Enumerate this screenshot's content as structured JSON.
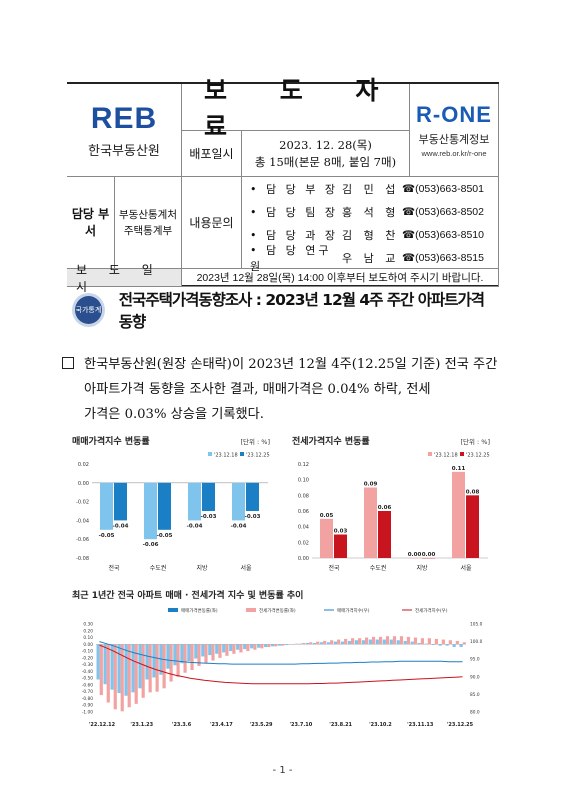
{
  "header": {
    "org_logo_text": "REB",
    "org_name": "한국부동산원",
    "doc_title": "보 도 자 료",
    "distribution_label": "배포일시",
    "distribution_date": "2023. 12. 28(목)",
    "distribution_pages": "총 15매(본문 8매, 붙임 7매)",
    "rone_logo_text": "R-ONE",
    "rone_name": "부동산통계정보",
    "rone_url": "www.reb.or.kr/r-one",
    "dept_label": "담당 부서",
    "dept_line1": "부동산통계처",
    "dept_line2": "주택통계부",
    "inquiry_label": "내용문의",
    "contacts": [
      {
        "role": "• 담 당 부 장",
        "name": "김 민 섭",
        "phone": "☎(053)663-8501"
      },
      {
        "role": "• 담 당 팀 장",
        "name": "홍 석 형",
        "phone": "☎(053)663-8502"
      },
      {
        "role": "• 담 당 과 장",
        "name": "김 형 찬",
        "phone": "☎(053)663-8510"
      },
      {
        "role": "• 담 당 연구원",
        "name": "우 남 교",
        "phone": "☎(053)663-8515"
      }
    ],
    "release_label": "보 도 일 시",
    "release_text": "2023년 12월 28일(목) 14:00 이후부터 보도하여 주시기 바랍니다."
  },
  "headline": {
    "emblem_text": "국가통계",
    "text": "전국주택가격동향조사 : 2023년 12월 4주 주간 아파트가격 동향"
  },
  "body": {
    "line1": "한국부동산원(원장 손태락)이 2023년 12월 4주(12.25일 기준) 전국 주간",
    "line2": "아파트가격 동향을 조사한 결과, 매매가격은 0.04% 하락, 전세",
    "line3": "가격은 0.03% 상승을 기록했다."
  },
  "colors": {
    "sale_prev": "#7fc4ec",
    "sale_curr": "#1a7fc4",
    "jeonse_prev": "#f3a2a2",
    "jeonse_curr": "#c8141e"
  },
  "chart_data": [
    {
      "type": "bar",
      "title": "매매가격지수 변동률",
      "unit": "[단위 : %]",
      "categories": [
        "전국",
        "수도권",
        "지방",
        "서울"
      ],
      "series": [
        {
          "name": "'23.12.18",
          "values": [
            -0.05,
            -0.06,
            -0.04,
            -0.04
          ]
        },
        {
          "name": "'23.12.25",
          "values": [
            -0.04,
            -0.05,
            -0.03,
            -0.03
          ]
        }
      ],
      "ylim": [
        -0.08,
        0.02
      ],
      "yticks": [
        "0.02",
        "0.00",
        "-0.02",
        "-0.04",
        "-0.06",
        "-0.08"
      ]
    },
    {
      "type": "bar",
      "title": "전세가격지수 변동률",
      "unit": "[단위 : %]",
      "categories": [
        "전국",
        "수도권",
        "지방",
        "서울"
      ],
      "series": [
        {
          "name": "'23.12.18",
          "values": [
            0.05,
            0.09,
            0.0,
            0.11
          ]
        },
        {
          "name": "'23.12.25",
          "values": [
            0.03,
            0.06,
            0.0,
            0.08
          ]
        }
      ],
      "ylim": [
        0.0,
        0.12
      ],
      "yticks": [
        "0.12",
        "0.10",
        "0.08",
        "0.06",
        "0.04",
        "0.02",
        "0.00"
      ]
    },
    {
      "type": "bar",
      "title": "최근 1년간 전국 아파트 매매 · 전세가격 지수 및 변동률 추이",
      "legend": [
        "매매가격변동률(좌)",
        "전세가격변동률(좌)",
        "매매가격지수(우)",
        "전세가격지수(우)"
      ],
      "x_labels": [
        "'22.12.12",
        "'23.1.23",
        "'23.3.6",
        "'23.4.17",
        "'23.5.29",
        "'23.7.10",
        "'23.8.21",
        "'23.10.2",
        "'23.11.13",
        "'23.12.25"
      ],
      "y_left_ticks": [
        "0.30",
        "0.20",
        "0.10",
        "0.00",
        "-0.10",
        "-0.20",
        "-0.30",
        "-0.40",
        "-0.50",
        "-0.60",
        "-0.70",
        "-0.80",
        "-0.90",
        "-1.00"
      ],
      "y_right_ticks": [
        "105.0",
        "100.0",
        "95.0",
        "90.0",
        "85.0",
        "80.0"
      ],
      "ylim_left": [
        -1.0,
        0.3
      ],
      "ylim_right": [
        80,
        105
      ],
      "sale_change": [
        -0.52,
        -0.59,
        -0.67,
        -0.72,
        -0.76,
        -0.71,
        -0.65,
        -0.52,
        -0.49,
        -0.45,
        -0.36,
        -0.31,
        -0.28,
        -0.25,
        -0.21,
        -0.18,
        -0.16,
        -0.14,
        -0.12,
        -0.1,
        -0.08,
        -0.07,
        -0.06,
        -0.05,
        -0.04,
        -0.03,
        -0.02,
        -0.01,
        0.0,
        0.01,
        0.02,
        0.02,
        0.03,
        0.03,
        0.04,
        0.04,
        0.05,
        0.06,
        0.06,
        0.07,
        0.07,
        0.07,
        0.07,
        0.06,
        0.05,
        0.04,
        0.02,
        0.01,
        -0.01,
        -0.02,
        -0.02,
        -0.04,
        -0.04
      ],
      "jeonse_change": [
        -0.75,
        -0.86,
        -0.96,
        -0.99,
        -0.93,
        -0.88,
        -0.79,
        -0.71,
        -0.7,
        -0.65,
        -0.55,
        -0.48,
        -0.42,
        -0.38,
        -0.32,
        -0.28,
        -0.24,
        -0.2,
        -0.17,
        -0.14,
        -0.12,
        -0.1,
        -0.08,
        -0.06,
        -0.04,
        -0.03,
        -0.02,
        0.0,
        0.01,
        0.02,
        0.03,
        0.04,
        0.05,
        0.06,
        0.07,
        0.08,
        0.09,
        0.09,
        0.1,
        0.11,
        0.11,
        0.12,
        0.12,
        0.12,
        0.11,
        0.1,
        0.09,
        0.09,
        0.08,
        0.07,
        0.06,
        0.05,
        0.03
      ],
      "sale_index": [
        100.0,
        99.4,
        98.8,
        98.1,
        97.4,
        96.8,
        96.3,
        95.8,
        95.4,
        95.0,
        94.7,
        94.5,
        94.3,
        94.1,
        94.0,
        93.9,
        93.8,
        93.7,
        93.7,
        93.6,
        93.6,
        93.6,
        93.6,
        93.6,
        93.6,
        93.6,
        93.6,
        93.6,
        93.6,
        93.7,
        93.7,
        93.8,
        93.8,
        93.9,
        93.9,
        94.0,
        94.0,
        94.1,
        94.1,
        94.2,
        94.2,
        94.3,
        94.3,
        94.4,
        94.4,
        94.4,
        94.4,
        94.4,
        94.4,
        94.4,
        94.3,
        94.3,
        94.3
      ],
      "jeonse_index": [
        99.0,
        98.2,
        97.3,
        96.3,
        95.3,
        94.4,
        93.6,
        92.8,
        92.1,
        91.5,
        90.9,
        90.4,
        90.0,
        89.6,
        89.3,
        89.0,
        88.8,
        88.6,
        88.4,
        88.3,
        88.2,
        88.1,
        88.0,
        88.0,
        88.0,
        88.0,
        88.0,
        88.0,
        88.0,
        88.0,
        88.0,
        88.1,
        88.1,
        88.2,
        88.2,
        88.3,
        88.4,
        88.5,
        88.6,
        88.7,
        88.8,
        88.9,
        89.0,
        89.1,
        89.2,
        89.3,
        89.4,
        89.5,
        89.6,
        89.7,
        89.8,
        89.9,
        90.0
      ]
    }
  ],
  "footer": {
    "page_number": "- 1 -"
  }
}
